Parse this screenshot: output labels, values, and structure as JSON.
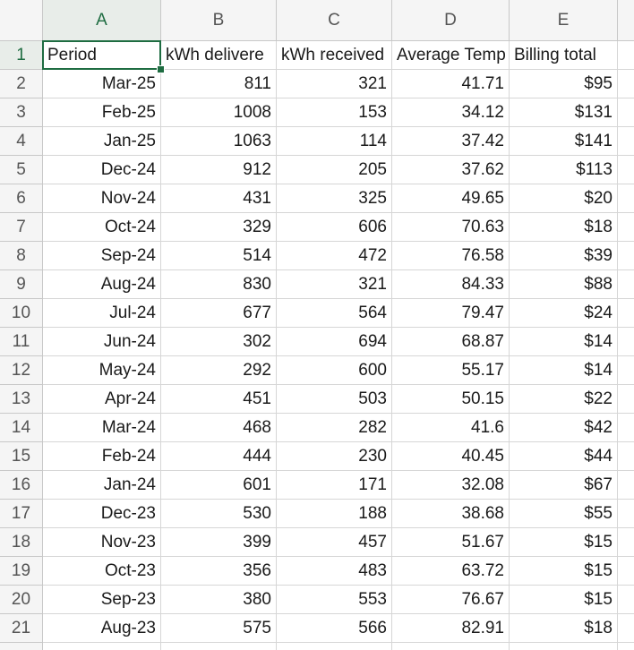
{
  "table": {
    "columns": [
      "A",
      "B",
      "C",
      "D",
      "E"
    ],
    "rows": [
      {
        "number": 1,
        "cells": [
          "Period",
          "kWh delivere",
          "kWh received",
          "Average Temp",
          "Billing total"
        ]
      },
      {
        "number": 2,
        "cells": [
          "Mar-25",
          811,
          321,
          41.71,
          "$95"
        ]
      },
      {
        "number": 3,
        "cells": [
          "Feb-25",
          1008,
          153,
          34.12,
          "$131"
        ]
      },
      {
        "number": 4,
        "cells": [
          "Jan-25",
          1063,
          114,
          37.42,
          "$141"
        ]
      },
      {
        "number": 5,
        "cells": [
          "Dec-24",
          912,
          205,
          37.62,
          "$113"
        ]
      },
      {
        "number": 6,
        "cells": [
          "Nov-24",
          431,
          325,
          49.65,
          "$20"
        ]
      },
      {
        "number": 7,
        "cells": [
          "Oct-24",
          329,
          606,
          70.63,
          "$18"
        ]
      },
      {
        "number": 8,
        "cells": [
          "Sep-24",
          514,
          472,
          76.58,
          "$39"
        ]
      },
      {
        "number": 9,
        "cells": [
          "Aug-24",
          830,
          321,
          84.33,
          "$88"
        ]
      },
      {
        "number": 10,
        "cells": [
          "Jul-24",
          677,
          564,
          79.47,
          "$24"
        ]
      },
      {
        "number": 11,
        "cells": [
          "Jun-24",
          302,
          694,
          68.87,
          "$14"
        ]
      },
      {
        "number": 12,
        "cells": [
          "May-24",
          292,
          600,
          55.17,
          "$14"
        ]
      },
      {
        "number": 13,
        "cells": [
          "Apr-24",
          451,
          503,
          50.15,
          "$22"
        ]
      },
      {
        "number": 14,
        "cells": [
          "Mar-24",
          468,
          282,
          41.6,
          "$42"
        ]
      },
      {
        "number": 15,
        "cells": [
          "Feb-24",
          444,
          230,
          40.45,
          "$44"
        ]
      },
      {
        "number": 16,
        "cells": [
          "Jan-24",
          601,
          171,
          32.08,
          "$67"
        ]
      },
      {
        "number": 17,
        "cells": [
          "Dec-23",
          530,
          188,
          38.68,
          "$55"
        ]
      },
      {
        "number": 18,
        "cells": [
          "Nov-23",
          399,
          457,
          51.67,
          "$15"
        ]
      },
      {
        "number": 19,
        "cells": [
          "Oct-23",
          356,
          483,
          63.72,
          "$15"
        ]
      },
      {
        "number": 20,
        "cells": [
          "Sep-23",
          380,
          553,
          76.67,
          "$15"
        ]
      },
      {
        "number": 21,
        "cells": [
          "Aug-23",
          575,
          566,
          82.91,
          "$18"
        ]
      }
    ]
  }
}
